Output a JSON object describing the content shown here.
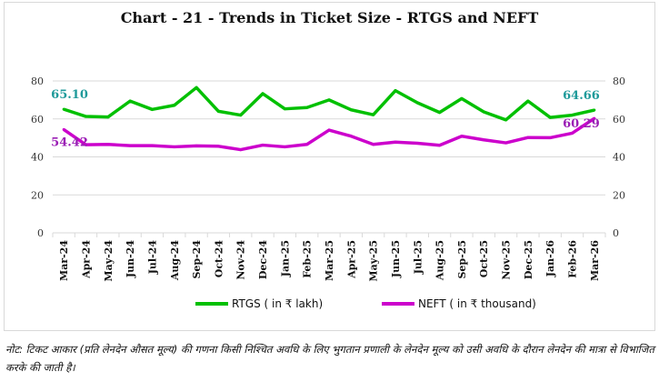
{
  "chart_data": {
    "type": "line",
    "title": "Chart - 21 - Trends in Ticket Size - RTGS and NEFT",
    "categories": [
      "Mar-24",
      "Apr-24",
      "May-24",
      "Jun-24",
      "Jul-24",
      "Aug-24",
      "Sep-24",
      "Oct-24",
      "Nov-24",
      "Dec-24",
      "Jan-25",
      "Feb-25",
      "Mar-25",
      "Apr-25",
      "May-25",
      "Jun-25",
      "Jul-25",
      "Aug-25",
      "Sep-25",
      "Oct-25",
      "Nov-25",
      "Dec-25",
      "Jan-26",
      "Feb-26",
      "Mar-26"
    ],
    "ylim": [
      0,
      80
    ],
    "y_ticks": [
      "0",
      "20",
      "40",
      "60",
      "80"
    ],
    "y2_ticks": [
      "0",
      "20",
      "40",
      "60",
      "80"
    ],
    "grid": true,
    "legend_position": "bottom",
    "series": [
      {
        "name": "RTGS ( in ₹ lakh)",
        "color": "#00c000",
        "values": [
          65.1,
          61.3,
          61.0,
          69.4,
          65.0,
          67.2,
          76.5,
          64.0,
          62.0,
          73.3,
          65.3,
          66.0,
          70.0,
          64.8,
          62.2,
          74.9,
          68.5,
          63.4,
          70.7,
          63.7,
          59.5,
          69.4,
          60.8,
          62.0,
          64.66
        ],
        "labels": {
          "first": "65.10",
          "last": "64.66"
        },
        "label_color": "#1f9a9a"
      },
      {
        "name": "NEFT ( in ₹ thousand)",
        "color": "#cc00cc",
        "values": [
          54.42,
          46.4,
          46.6,
          45.9,
          45.9,
          45.3,
          45.8,
          45.6,
          43.8,
          46.2,
          45.3,
          46.6,
          54.1,
          50.9,
          46.6,
          47.8,
          47.2,
          46.1,
          50.9,
          49.0,
          47.4,
          50.2,
          50.1,
          52.5,
          60.29
        ],
        "labels": {
          "first": "54.42",
          "last": "60.29"
        },
        "label_color": "#9b1fb5"
      }
    ]
  },
  "note": "नोट: टिकट आकार (प्रति लेनदेन औसत मूल्य) की गणना किसी निश्चित अवधि के लिए भुगतान प्रणाली के लेनदेन मूल्य को उसी अवधि के दौरान लेनदेन की मात्रा से विभाजित करके की जाती है।"
}
